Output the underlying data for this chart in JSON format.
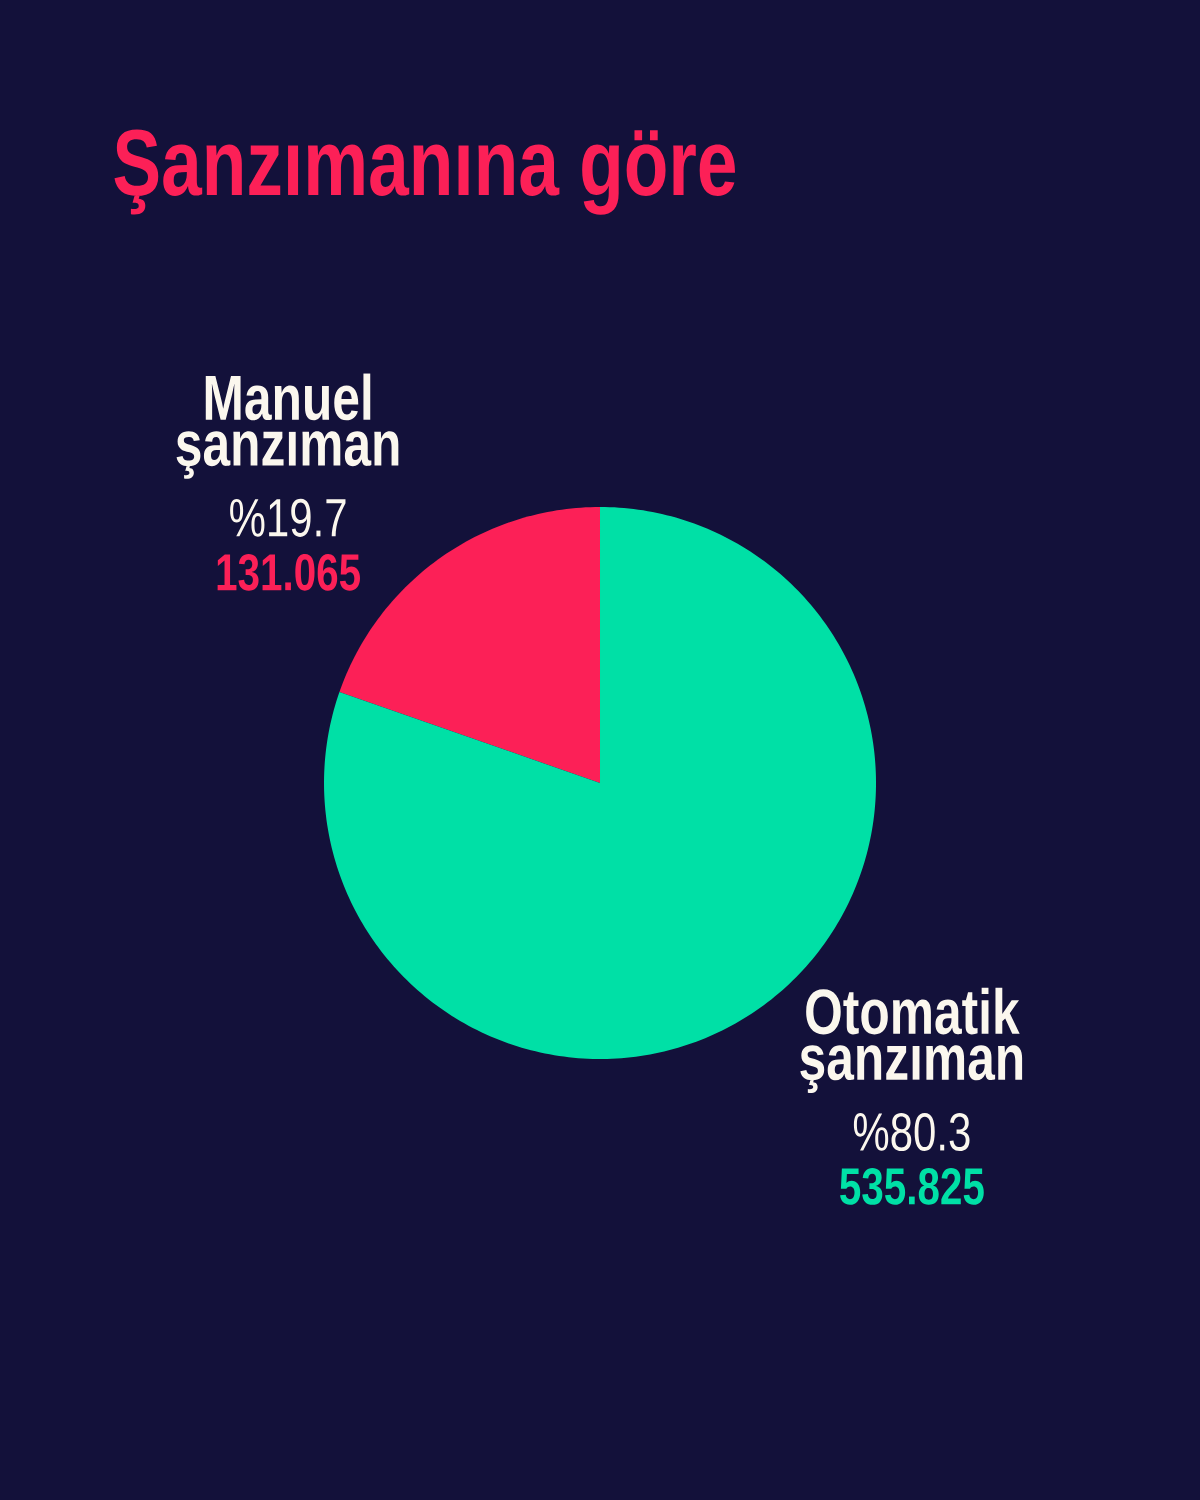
{
  "chart_data": {
    "type": "pie",
    "title": "Şanzımanına göre",
    "categories": [
      "Manuel şanzıman",
      "Otomatik şanzıman"
    ],
    "values": [
      131.065,
      535.825
    ],
    "colors": [
      "#fc2057",
      "#00e0a6"
    ],
    "value_labels": [
      "131.065",
      "535.825"
    ],
    "annotations": [
      "%19.7",
      "%80.3"
    ]
  }
}
